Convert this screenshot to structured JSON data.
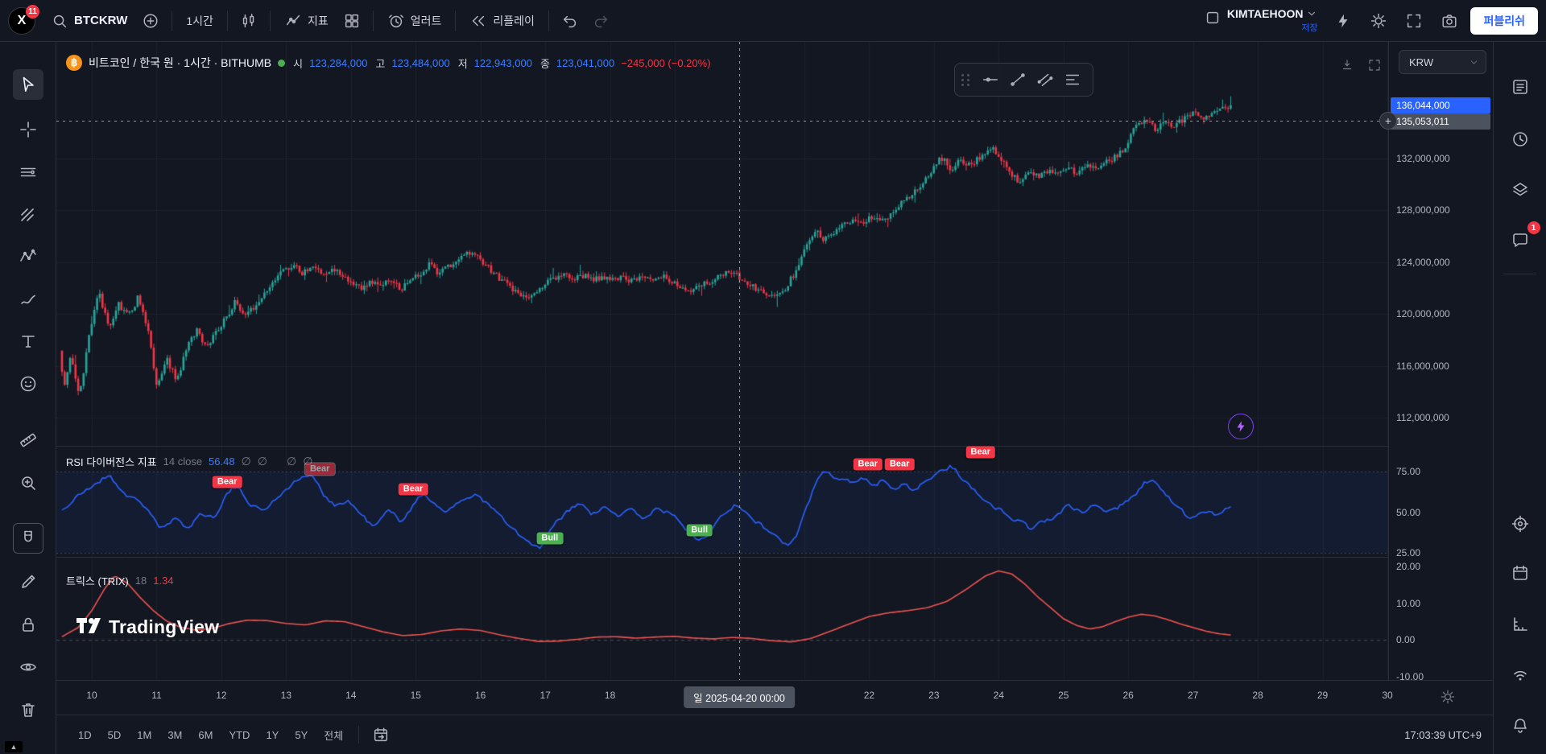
{
  "topbar": {
    "logo_badge": "11",
    "symbol_button": "BTCKRW",
    "interval_button": "1시간",
    "indicators_label": "지표",
    "alert_label": "얼러트",
    "replay_label": "리플레이",
    "username": "KIMTAEHOON",
    "save_label": "저장",
    "publish_label": "퍼블리쉬"
  },
  "left_toolbar": {
    "items": [
      {
        "id": "cursor",
        "active": true
      },
      {
        "id": "crosshair"
      },
      {
        "id": "line-tools"
      },
      {
        "id": "pitchfork"
      },
      {
        "id": "patterns"
      },
      {
        "id": "brush"
      },
      {
        "id": "text"
      },
      {
        "id": "emoji"
      },
      {
        "id": "ruler"
      },
      {
        "id": "zoom"
      },
      {
        "id": "magnet",
        "boxed": true
      },
      {
        "id": "draw"
      },
      {
        "id": "lock"
      },
      {
        "id": "eye"
      },
      {
        "id": "trash"
      }
    ]
  },
  "right_rail": {
    "items": [
      {
        "id": "watchlist"
      },
      {
        "id": "alerts"
      },
      {
        "id": "layers"
      },
      {
        "id": "chat",
        "badge": "1"
      },
      {
        "id": "object-tree"
      },
      {
        "id": "calendar"
      },
      {
        "id": "measure"
      },
      {
        "id": "broadcast"
      },
      {
        "id": "notifications"
      }
    ],
    "chat_badge": "1"
  },
  "legend": {
    "title": "비트코인 / 한국 원 · 1시간 · BITHUMB",
    "open_label": "시",
    "open": "123,284,000",
    "high_label": "고",
    "high": "123,484,000",
    "low_label": "저",
    "low": "122,943,000",
    "close_label": "종",
    "close": "123,041,000",
    "change": "−245,000 (−0.20%)"
  },
  "rsi_pane": {
    "title": "RSI 다이버전스 지표",
    "params": "14 close",
    "value": "56.48"
  },
  "trix_pane": {
    "title": "트릭스 (TRIX)",
    "params": "18",
    "value": "1.34"
  },
  "watermark": "TradingView",
  "price_scale": {
    "currency": "KRW",
    "last_price_badge": "136,044,000",
    "crosshair_badge": "135,053,011",
    "ticks": [
      {
        "value": 132,
        "label": "132,000,000"
      },
      {
        "value": 128,
        "label": "128,000,000"
      },
      {
        "value": 124,
        "label": "124,000,000"
      },
      {
        "value": 120,
        "label": "120,000,000"
      },
      {
        "value": 116,
        "label": "116,000,000"
      },
      {
        "value": 112,
        "label": "112,000,000"
      }
    ]
  },
  "rsi_scale": [
    {
      "value": 75,
      "label": "75.00"
    },
    {
      "value": 50,
      "label": "50.00"
    },
    {
      "value": 25,
      "label": "25.00"
    }
  ],
  "trix_scale": [
    {
      "value": 20,
      "label": "20.00"
    },
    {
      "value": 10,
      "label": "10.00"
    },
    {
      "value": 0,
      "label": "0.00"
    },
    {
      "value": -10,
      "label": "-10.00"
    }
  ],
  "time_axis": {
    "days": [
      {
        "label": "10",
        "day": 10
      },
      {
        "label": "11",
        "day": 11
      },
      {
        "label": "12",
        "day": 12
      },
      {
        "label": "13",
        "day": 13
      },
      {
        "label": "14",
        "day": 14
      },
      {
        "label": "15",
        "day": 15
      },
      {
        "label": "16",
        "day": 16
      },
      {
        "label": "17",
        "day": 17
      },
      {
        "label": "18",
        "day": 18
      },
      {
        "label": "22",
        "day": 22
      },
      {
        "label": "23",
        "day": 23
      },
      {
        "label": "24",
        "day": 24
      },
      {
        "label": "25",
        "day": 25
      },
      {
        "label": "26",
        "day": 26
      },
      {
        "label": "27",
        "day": 27
      },
      {
        "label": "28",
        "day": 28
      },
      {
        "label": "29",
        "day": 29
      },
      {
        "label": "30",
        "day": 30
      }
    ],
    "crosshair_label": "일 2025-04-20 00:00"
  },
  "bottom_bar": {
    "ranges": [
      "1D",
      "5D",
      "1M",
      "3M",
      "6M",
      "YTD",
      "1Y",
      "5Y",
      "전체"
    ],
    "clock": "17:03:39 UTC+9"
  },
  "chart_data": {
    "type": "candlestick+indicators",
    "symbol": "BTCKRW",
    "exchange": "BITHUMB",
    "interval": "1h",
    "title": "비트코인 / 한국 원 · 1시간 · BITHUMB",
    "price_unit": "millions KRW",
    "colors": {
      "accent": "#2962ff",
      "up": "#26a69a",
      "down": "#f23645",
      "rsi": "#2962ff",
      "trix": "#ef5350",
      "bull": "#4caf50",
      "bear": "#f23645",
      "legend_value": "#3d7eff",
      "axis_text": "#b2b5be",
      "grid": "rgba(255,255,255,0.045)"
    },
    "crosshair": {
      "day": 20.0,
      "price_label": "135,053,011",
      "time_label": "일 2025-04-20 00:00"
    },
    "price_anchors_millions": [
      [
        9.5,
        118.5
      ],
      [
        9.62,
        114.5
      ],
      [
        9.72,
        117.0
      ],
      [
        9.85,
        113.5
      ],
      [
        10.0,
        118.5
      ],
      [
        10.15,
        121.8
      ],
      [
        10.3,
        119.0
      ],
      [
        10.45,
        120.8
      ],
      [
        10.6,
        119.8
      ],
      [
        10.75,
        121.2
      ],
      [
        10.9,
        119.0
      ],
      [
        11.05,
        114.2
      ],
      [
        11.2,
        116.6
      ],
      [
        11.35,
        114.8
      ],
      [
        11.5,
        117.2
      ],
      [
        11.65,
        118.8
      ],
      [
        11.8,
        117.6
      ],
      [
        11.95,
        118.4
      ],
      [
        12.1,
        119.6
      ],
      [
        12.25,
        120.9
      ],
      [
        12.4,
        119.9
      ],
      [
        12.55,
        120.6
      ],
      [
        12.7,
        121.6
      ],
      [
        12.85,
        122.4
      ],
      [
        13.0,
        123.3
      ],
      [
        13.15,
        123.9
      ],
      [
        13.3,
        123.1
      ],
      [
        13.45,
        123.8
      ],
      [
        13.6,
        122.9
      ],
      [
        13.75,
        123.4
      ],
      [
        13.9,
        123.0
      ],
      [
        14.05,
        122.5
      ],
      [
        14.2,
        121.9
      ],
      [
        14.35,
        122.6
      ],
      [
        14.5,
        122.1
      ],
      [
        14.65,
        122.7
      ],
      [
        14.8,
        121.9
      ],
      [
        14.95,
        122.4
      ],
      [
        15.1,
        123.1
      ],
      [
        15.25,
        123.8
      ],
      [
        15.4,
        123.1
      ],
      [
        15.55,
        123.7
      ],
      [
        15.7,
        124.2
      ],
      [
        15.85,
        124.7
      ],
      [
        16.0,
        124.4
      ],
      [
        16.15,
        123.6
      ],
      [
        16.3,
        122.9
      ],
      [
        16.45,
        122.3
      ],
      [
        16.6,
        121.7
      ],
      [
        16.75,
        121.3
      ],
      [
        16.9,
        121.6
      ],
      [
        17.05,
        122.3
      ],
      [
        17.2,
        122.8
      ],
      [
        17.35,
        123.1
      ],
      [
        17.5,
        122.7
      ],
      [
        17.65,
        122.9
      ],
      [
        17.8,
        122.6
      ],
      [
        17.95,
        122.9
      ],
      [
        18.1,
        122.6
      ],
      [
        18.25,
        122.9
      ],
      [
        18.4,
        122.5
      ],
      [
        18.55,
        122.8
      ],
      [
        18.7,
        122.6
      ],
      [
        18.85,
        122.9
      ],
      [
        19.0,
        122.6
      ],
      [
        19.15,
        122.1
      ],
      [
        19.3,
        121.7
      ],
      [
        19.45,
        122.2
      ],
      [
        19.6,
        122.6
      ],
      [
        19.75,
        122.9
      ],
      [
        19.9,
        123.2
      ],
      [
        20.0,
        123.0
      ],
      [
        20.15,
        122.5
      ],
      [
        20.3,
        122.0
      ],
      [
        20.45,
        121.7
      ],
      [
        20.6,
        121.4
      ],
      [
        20.75,
        122.0
      ],
      [
        20.9,
        123.2
      ],
      [
        21.05,
        125.0
      ],
      [
        21.2,
        126.5
      ],
      [
        21.35,
        125.7
      ],
      [
        21.5,
        126.3
      ],
      [
        21.65,
        126.9
      ],
      [
        21.8,
        127.3
      ],
      [
        21.95,
        127.0
      ],
      [
        22.1,
        127.5
      ],
      [
        22.25,
        127.1
      ],
      [
        22.4,
        128.0
      ],
      [
        22.55,
        128.7
      ],
      [
        22.7,
        129.3
      ],
      [
        22.85,
        130.1
      ],
      [
        23.0,
        131.0
      ],
      [
        23.15,
        132.1
      ],
      [
        23.3,
        131.2
      ],
      [
        23.45,
        132.0
      ],
      [
        23.6,
        131.4
      ],
      [
        23.75,
        132.1
      ],
      [
        23.9,
        132.9
      ],
      [
        24.05,
        132.2
      ],
      [
        24.2,
        130.9
      ],
      [
        24.35,
        130.3
      ],
      [
        24.5,
        131.0
      ],
      [
        24.65,
        130.6
      ],
      [
        24.8,
        131.1
      ],
      [
        24.95,
        130.7
      ],
      [
        25.1,
        131.2
      ],
      [
        25.25,
        130.9
      ],
      [
        25.4,
        131.4
      ],
      [
        25.55,
        131.1
      ],
      [
        25.7,
        131.7
      ],
      [
        25.85,
        132.1
      ],
      [
        26.0,
        132.7
      ],
      [
        26.15,
        134.5
      ],
      [
        26.3,
        135.0
      ],
      [
        26.45,
        134.3
      ],
      [
        26.6,
        134.8
      ],
      [
        26.75,
        134.4
      ],
      [
        26.9,
        135.1
      ],
      [
        27.05,
        135.5
      ],
      [
        27.2,
        134.9
      ],
      [
        27.35,
        135.4
      ],
      [
        27.5,
        135.9
      ],
      [
        27.62,
        136.0
      ]
    ],
    "rsi_anchors": [
      [
        9.5,
        50
      ],
      [
        9.7,
        58
      ],
      [
        9.9,
        64
      ],
      [
        10.1,
        70
      ],
      [
        10.25,
        73
      ],
      [
        10.45,
        62
      ],
      [
        10.65,
        57
      ],
      [
        10.85,
        52
      ],
      [
        11.05,
        38
      ],
      [
        11.25,
        46
      ],
      [
        11.45,
        40
      ],
      [
        11.65,
        50
      ],
      [
        11.85,
        46
      ],
      [
        12.05,
        62
      ],
      [
        12.2,
        66
      ],
      [
        12.4,
        56
      ],
      [
        12.6,
        50
      ],
      [
        12.8,
        58
      ],
      [
        13.0,
        66
      ],
      [
        13.2,
        71
      ],
      [
        13.35,
        74
      ],
      [
        13.55,
        60
      ],
      [
        13.75,
        54
      ],
      [
        13.95,
        57
      ],
      [
        14.15,
        47
      ],
      [
        14.35,
        40
      ],
      [
        14.55,
        52
      ],
      [
        14.75,
        44
      ],
      [
        14.95,
        56
      ],
      [
        15.1,
        62
      ],
      [
        15.3,
        54
      ],
      [
        15.5,
        50
      ],
      [
        15.7,
        58
      ],
      [
        15.9,
        62
      ],
      [
        16.1,
        54
      ],
      [
        16.3,
        46
      ],
      [
        16.5,
        38
      ],
      [
        16.7,
        31
      ],
      [
        16.9,
        27
      ],
      [
        17.1,
        42
      ],
      [
        17.3,
        50
      ],
      [
        17.5,
        56
      ],
      [
        17.7,
        48
      ],
      [
        17.9,
        53
      ],
      [
        18.1,
        47
      ],
      [
        18.3,
        52
      ],
      [
        18.5,
        46
      ],
      [
        18.7,
        53
      ],
      [
        18.9,
        49
      ],
      [
        19.1,
        42
      ],
      [
        19.3,
        33
      ],
      [
        19.5,
        38
      ],
      [
        19.7,
        50
      ],
      [
        19.9,
        55
      ],
      [
        20.1,
        48
      ],
      [
        20.3,
        42
      ],
      [
        20.5,
        36
      ],
      [
        20.7,
        29
      ],
      [
        20.85,
        34
      ],
      [
        21.0,
        52
      ],
      [
        21.15,
        70
      ],
      [
        21.3,
        76
      ],
      [
        21.45,
        70
      ],
      [
        21.6,
        73
      ],
      [
        21.75,
        67
      ],
      [
        21.9,
        72
      ],
      [
        22.05,
        66
      ],
      [
        22.2,
        70
      ],
      [
        22.35,
        64
      ],
      [
        22.5,
        69
      ],
      [
        22.65,
        63
      ],
      [
        22.8,
        68
      ],
      [
        22.95,
        72
      ],
      [
        23.1,
        76
      ],
      [
        23.25,
        79
      ],
      [
        23.45,
        69
      ],
      [
        23.65,
        61
      ],
      [
        23.85,
        55
      ],
      [
        24.05,
        50
      ],
      [
        24.25,
        45
      ],
      [
        24.45,
        40
      ],
      [
        24.65,
        44
      ],
      [
        24.85,
        48
      ],
      [
        25.05,
        54
      ],
      [
        25.25,
        49
      ],
      [
        25.45,
        55
      ],
      [
        25.65,
        50
      ],
      [
        25.85,
        54
      ],
      [
        26.05,
        59
      ],
      [
        26.2,
        68
      ],
      [
        26.35,
        71
      ],
      [
        26.55,
        60
      ],
      [
        26.75,
        52
      ],
      [
        26.95,
        44
      ],
      [
        27.15,
        52
      ],
      [
        27.35,
        48
      ],
      [
        27.5,
        54
      ],
      [
        27.62,
        56.5
      ]
    ],
    "trix_anchors": [
      [
        9.5,
        0.5
      ],
      [
        9.8,
        3.5
      ],
      [
        10.0,
        8.0
      ],
      [
        10.2,
        14.0
      ],
      [
        10.35,
        17.5
      ],
      [
        10.55,
        15.5
      ],
      [
        10.75,
        11.5
      ],
      [
        10.95,
        8.0
      ],
      [
        11.15,
        5.2
      ],
      [
        11.35,
        3.6
      ],
      [
        11.6,
        2.7
      ],
      [
        11.85,
        3.1
      ],
      [
        12.1,
        4.4
      ],
      [
        12.4,
        5.4
      ],
      [
        12.7,
        5.3
      ],
      [
        13.0,
        4.5
      ],
      [
        13.3,
        4.1
      ],
      [
        13.6,
        5.2
      ],
      [
        13.9,
        5.0
      ],
      [
        14.2,
        3.6
      ],
      [
        14.5,
        2.2
      ],
      [
        14.8,
        1.2
      ],
      [
        15.1,
        1.5
      ],
      [
        15.4,
        2.5
      ],
      [
        15.7,
        3.0
      ],
      [
        16.0,
        2.6
      ],
      [
        16.3,
        1.4
      ],
      [
        16.6,
        0.4
      ],
      [
        16.9,
        -0.4
      ],
      [
        17.2,
        -0.3
      ],
      [
        17.5,
        0.2
      ],
      [
        17.8,
        0.8
      ],
      [
        18.1,
        0.9
      ],
      [
        18.4,
        0.5
      ],
      [
        18.7,
        0.8
      ],
      [
        19.0,
        1.0
      ],
      [
        19.3,
        0.5
      ],
      [
        19.6,
        0.3
      ],
      [
        19.9,
        0.7
      ],
      [
        20.2,
        0.4
      ],
      [
        20.5,
        -0.2
      ],
      [
        20.8,
        -0.5
      ],
      [
        21.1,
        0.4
      ],
      [
        21.4,
        2.4
      ],
      [
        21.7,
        4.4
      ],
      [
        22.0,
        6.4
      ],
      [
        22.3,
        7.4
      ],
      [
        22.6,
        8.0
      ],
      [
        22.9,
        8.8
      ],
      [
        23.2,
        10.5
      ],
      [
        23.5,
        13.8
      ],
      [
        23.8,
        17.5
      ],
      [
        24.0,
        18.8
      ],
      [
        24.2,
        18.0
      ],
      [
        24.4,
        15.3
      ],
      [
        24.6,
        11.8
      ],
      [
        24.8,
        8.8
      ],
      [
        25.0,
        5.8
      ],
      [
        25.2,
        4.0
      ],
      [
        25.4,
        3.0
      ],
      [
        25.6,
        3.6
      ],
      [
        25.8,
        5.0
      ],
      [
        26.0,
        6.2
      ],
      [
        26.2,
        7.0
      ],
      [
        26.4,
        6.6
      ],
      [
        26.6,
        5.6
      ],
      [
        26.8,
        4.4
      ],
      [
        27.0,
        3.4
      ],
      [
        27.2,
        2.4
      ],
      [
        27.4,
        1.7
      ],
      [
        27.62,
        1.3
      ]
    ],
    "markers": [
      {
        "text": "Bear",
        "kind": "bear",
        "day": 12.09,
        "pos": 68.6
      },
      {
        "text": "Bear",
        "kind": "bear",
        "day": 13.52,
        "pos": 76.5,
        "faded": true
      },
      {
        "text": "Bear",
        "kind": "bear",
        "day": 14.96,
        "pos": 64
      },
      {
        "text": "Bull",
        "kind": "bull",
        "day": 17.07,
        "pos": 34
      },
      {
        "text": "Bull",
        "kind": "bull",
        "day": 19.38,
        "pos": 39
      },
      {
        "text": "Bear",
        "kind": "bear",
        "day": 21.98,
        "pos": 79.5
      },
      {
        "text": "Bear",
        "kind": "bear",
        "day": 22.47,
        "pos": 79.5
      },
      {
        "text": "Bear",
        "kind": "bear",
        "day": 23.72,
        "pos": 87
      }
    ]
  },
  "float_toolbar": {
    "tools": [
      {
        "id": "horizontal-line"
      },
      {
        "id": "trend-line-tool"
      },
      {
        "id": "parallel-channel"
      },
      {
        "id": "fib-retracement"
      }
    ]
  }
}
